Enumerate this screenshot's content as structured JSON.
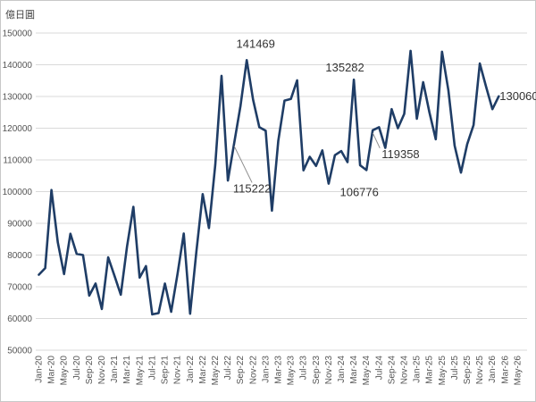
{
  "chart_data": {
    "type": "line",
    "unit_label": "億日圓",
    "ylim": [
      50000,
      150000
    ],
    "y_ticks": [
      50000,
      60000,
      70000,
      80000,
      90000,
      100000,
      110000,
      120000,
      130000,
      140000,
      150000
    ],
    "grid": true,
    "legend": "none",
    "x_tick_labels": [
      "Jan-20",
      "Mar-20",
      "May-20",
      "Jul-20",
      "Sep-20",
      "Nov-20",
      "Jan-21",
      "Mar-21",
      "May-21",
      "Jul-21",
      "Sep-21",
      "Nov-21",
      "Jan-22",
      "Mar-22",
      "May-22",
      "Jul-22",
      "Sep-22",
      "Nov-22",
      "Jan-23",
      "Mar-23",
      "May-23",
      "Jul-23",
      "Sep-23",
      "Nov-23",
      "Jan-24",
      "Mar-24",
      "May-24",
      "Jul-24",
      "Sep-24",
      "Nov-24",
      "Jan-25",
      "Mar-25",
      "May-25",
      "Jul-25",
      "Sep-25",
      "Nov-25",
      "Jan-26",
      "Mar-26",
      "May-26"
    ],
    "series": [
      {
        "color": "#1f3d66",
        "values": [
          73800,
          75900,
          100500,
          84000,
          74000,
          86700,
          80400,
          80000,
          67200,
          71000,
          63000,
          79300,
          73500,
          67500,
          82700,
          95200,
          72900,
          76500,
          61300,
          61700,
          71000,
          62100,
          74000,
          86800,
          61500,
          81000,
          99200,
          88500,
          108500,
          136500,
          103500,
          115222,
          127000,
          141469,
          129000,
          120300,
          119200,
          94000,
          116000,
          128700,
          129200,
          135100,
          106700,
          111000,
          108100,
          113000,
          102500,
          111500,
          112800,
          109300,
          135282,
          108300,
          106776,
          119358,
          120300,
          113800,
          126000,
          120000,
          124500,
          144400,
          123000,
          134500,
          125000,
          116500,
          144100,
          132000,
          114500,
          106000,
          115000,
          121000,
          140400,
          133000,
          126000,
          130060
        ]
      }
    ],
    "annotations": [
      {
        "text": "141469",
        "index": 33,
        "color": "#333333"
      },
      {
        "text": "115222",
        "index": 31,
        "color": "#333333"
      },
      {
        "text": "135282",
        "index": 50,
        "color": "#333333"
      },
      {
        "text": "106776",
        "index": 52,
        "color": "#333333"
      },
      {
        "text": "119358",
        "index": 53,
        "color": "#c00000"
      },
      {
        "text": "130060",
        "index": 73,
        "color": "#333333"
      }
    ]
  }
}
